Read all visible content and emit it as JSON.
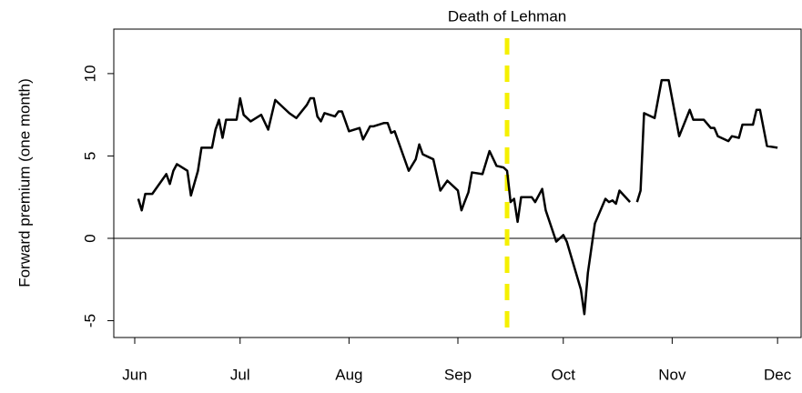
{
  "chart_data": {
    "type": "line",
    "ylabel": "Forward premium (one month)",
    "color": "#000000",
    "x": [
      1,
      2,
      3,
      5,
      7,
      9,
      10,
      11,
      12,
      15,
      16,
      18,
      19,
      22,
      23,
      24,
      25,
      26,
      29,
      30,
      31,
      33,
      36,
      38,
      40,
      43,
      44,
      46,
      49,
      50,
      51,
      52,
      53,
      54,
      57,
      58,
      59,
      61,
      64,
      65,
      67,
      68,
      71,
      72,
      73,
      74,
      78,
      80,
      81,
      82,
      85,
      87,
      89,
      92,
      93,
      95,
      96,
      99,
      101,
      103,
      105,
      106,
      107,
      108,
      109,
      110,
      113,
      114,
      116,
      117,
      120,
      122,
      123,
      127,
      128,
      129,
      131,
      134,
      135,
      136,
      137,
      138,
      141,
      142,
      143,
      144,
      145,
      148,
      150,
      152,
      155,
      158,
      159,
      162,
      164,
      165,
      166,
      169,
      170,
      172,
      173,
      176,
      177,
      178,
      180,
      183
    ],
    "values": [
      2.4,
      1.7,
      2.7,
      2.7,
      3.3,
      3.9,
      3.3,
      4.1,
      4.5,
      4.1,
      2.6,
      4.1,
      5.5,
      5.5,
      6.6,
      7.2,
      6.1,
      7.2,
      7.2,
      8.5,
      7.5,
      7.1,
      7.5,
      6.6,
      8.4,
      7.8,
      7.6,
      7.3,
      8.1,
      8.5,
      8.5,
      7.4,
      7.1,
      7.6,
      7.4,
      7.7,
      7.7,
      6.5,
      6.7,
      6.0,
      6.8,
      6.8,
      7.0,
      7.0,
      6.4,
      6.5,
      4.1,
      4.8,
      5.7,
      5.1,
      4.8,
      2.9,
      3.5,
      2.9,
      1.7,
      2.8,
      4.0,
      3.9,
      5.3,
      4.4,
      4.3,
      4.1,
      2.2,
      2.4,
      1.0,
      2.5,
      2.5,
      2.2,
      3.0,
      1.7,
      -0.2,
      0.2,
      -0.2,
      -3.1,
      -4.6,
      -2.1,
      0.9,
      2.4,
      2.2,
      2.3,
      2.1,
      2.9,
      2.2,
      null,
      2.2,
      2.9,
      7.6,
      7.3,
      9.6,
      9.6,
      6.2,
      7.8,
      7.2,
      7.2,
      6.7,
      6.7,
      6.2,
      5.9,
      6.2,
      6.1,
      6.9,
      6.9,
      7.8,
      7.8,
      5.6,
      5.5
    ],
    "xlim": [
      -5.96,
      189.7
    ],
    "ylim": [
      -6.02,
      12.7
    ],
    "xticks": [
      {
        "value": 0,
        "label": "Jun"
      },
      {
        "value": 30,
        "label": "Jul"
      },
      {
        "value": 61,
        "label": "Aug"
      },
      {
        "value": 92,
        "label": "Sep"
      },
      {
        "value": 122,
        "label": "Oct"
      },
      {
        "value": 153,
        "label": "Nov"
      },
      {
        "value": 183,
        "label": "Dec"
      }
    ],
    "yticks": [
      -5,
      0,
      5,
      10
    ],
    "hline": 0,
    "annotation": {
      "text": "Death of Lehman",
      "x": 106,
      "color": "#f5f000"
    }
  }
}
